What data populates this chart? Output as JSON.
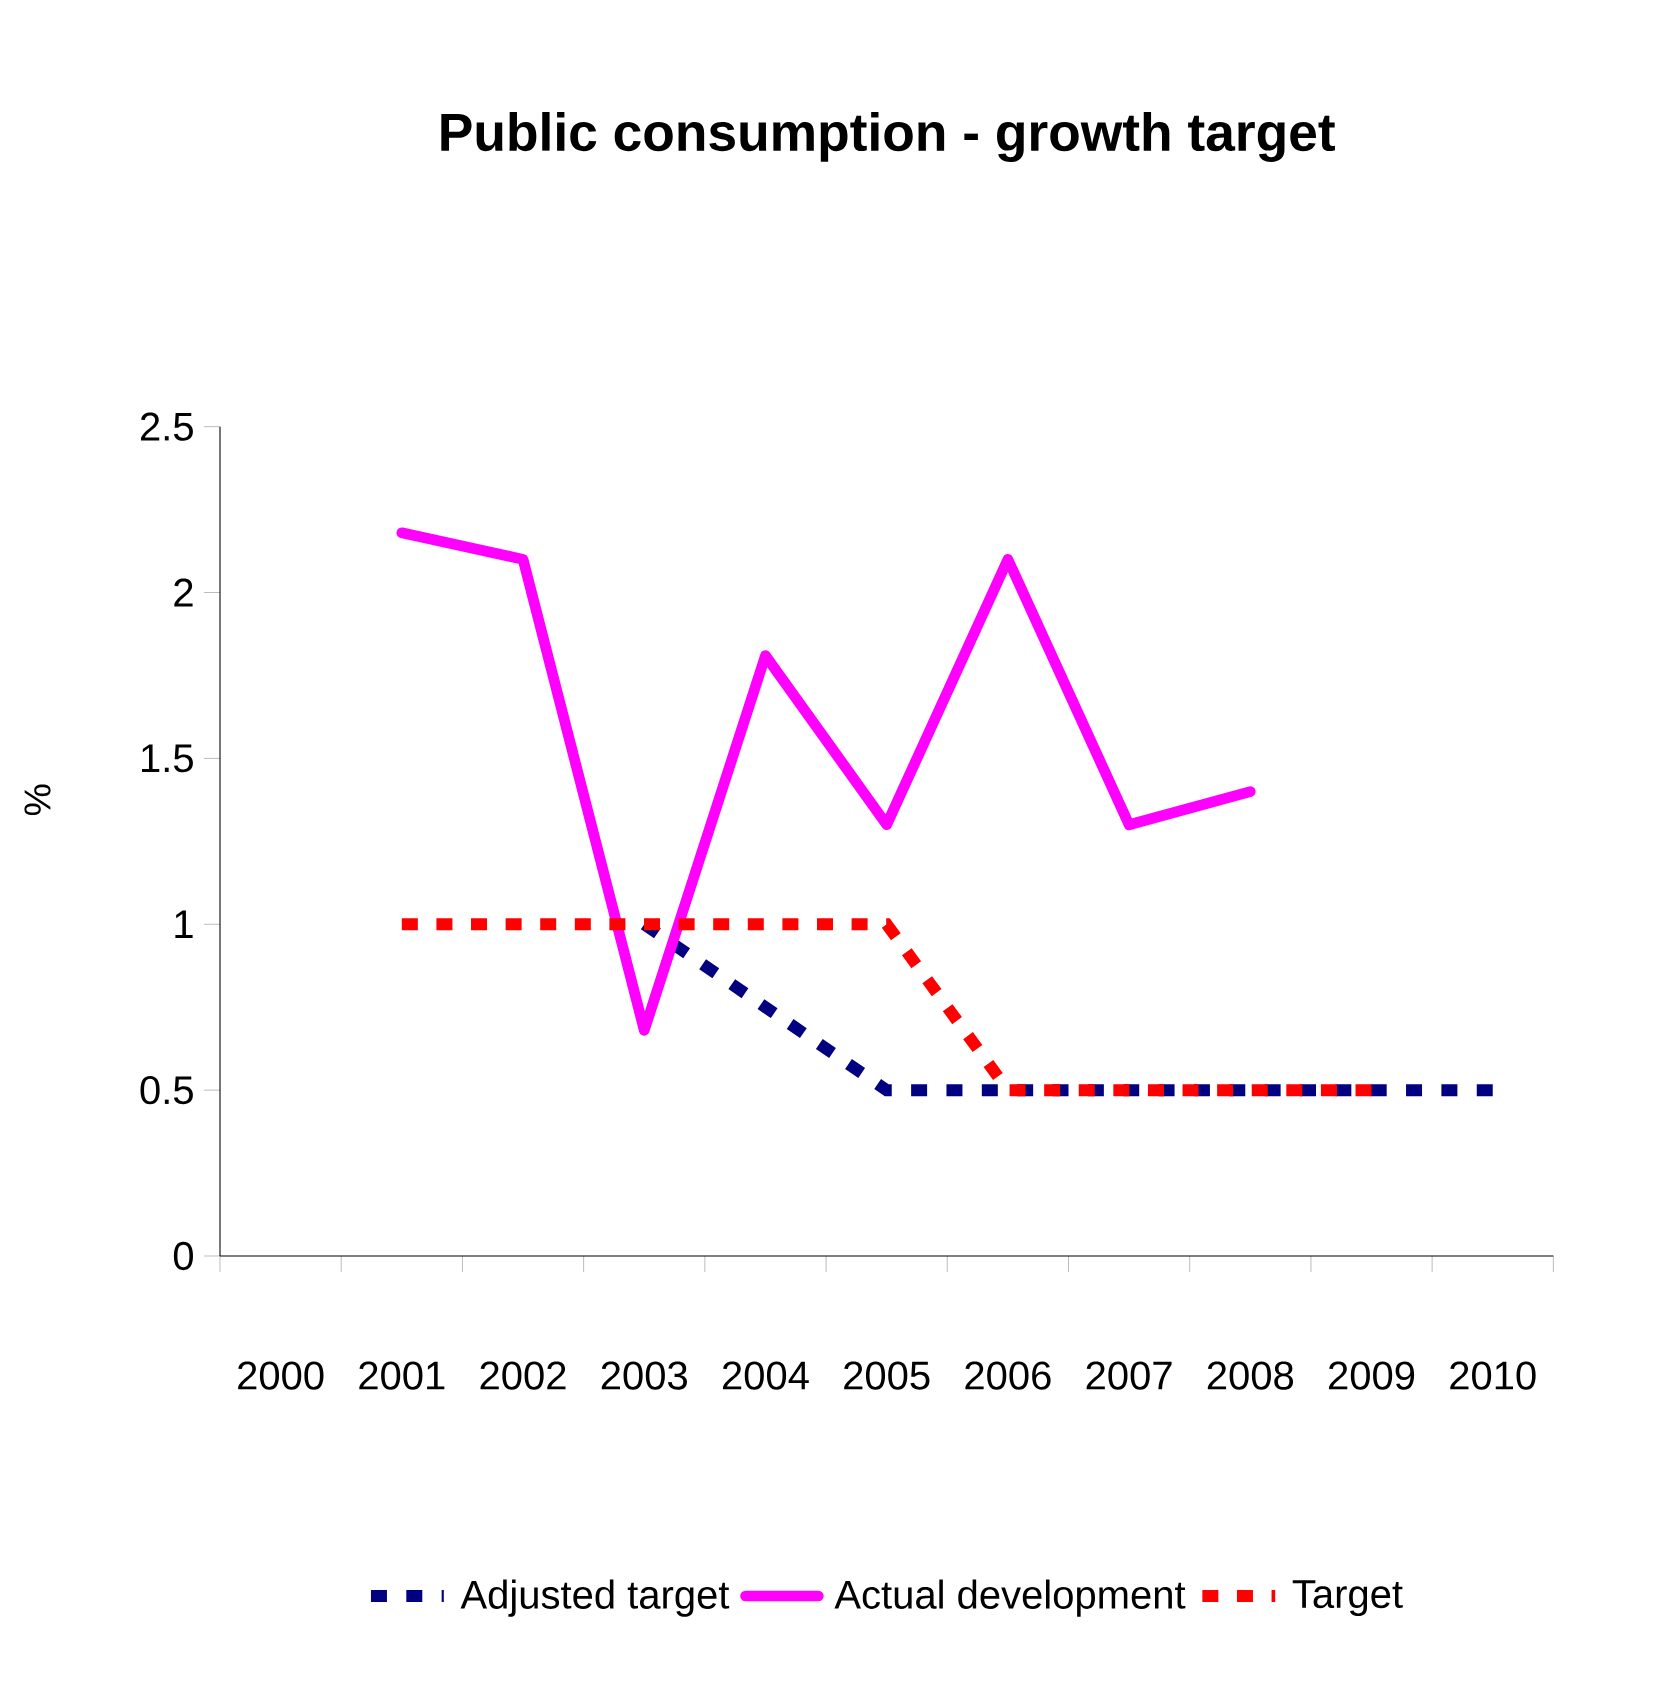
{
  "chart_data": {
    "type": "line",
    "title": "Public consumption - growth target",
    "ylabel": "%",
    "categories": [
      "2000",
      "2001",
      "2002",
      "2003",
      "2004",
      "2005",
      "2006",
      "2007",
      "2008",
      "2009",
      "2010"
    ],
    "series": [
      {
        "name": "Adjusted target",
        "color": "#000080",
        "line_style": "dashed",
        "values": [
          null,
          null,
          null,
          1.0,
          0.75,
          0.5,
          0.5,
          0.5,
          0.5,
          0.5,
          0.5
        ]
      },
      {
        "name": "Actual development",
        "color": "#ff00ff",
        "line_style": "solid",
        "values": [
          null,
          2.18,
          2.1,
          0.68,
          1.81,
          1.3,
          2.1,
          1.3,
          1.4,
          null,
          null
        ]
      },
      {
        "name": "Target",
        "color": "#ff0000",
        "line_style": "dashed",
        "values": [
          null,
          1.0,
          1.0,
          1.0,
          1.0,
          1.0,
          0.5,
          0.5,
          0.5,
          0.5,
          null
        ]
      }
    ],
    "ylim": [
      0,
      2.5
    ],
    "yticks": [
      0,
      0.5,
      1,
      1.5,
      2,
      2.5
    ],
    "legend": "bottom",
    "marker": "none"
  }
}
